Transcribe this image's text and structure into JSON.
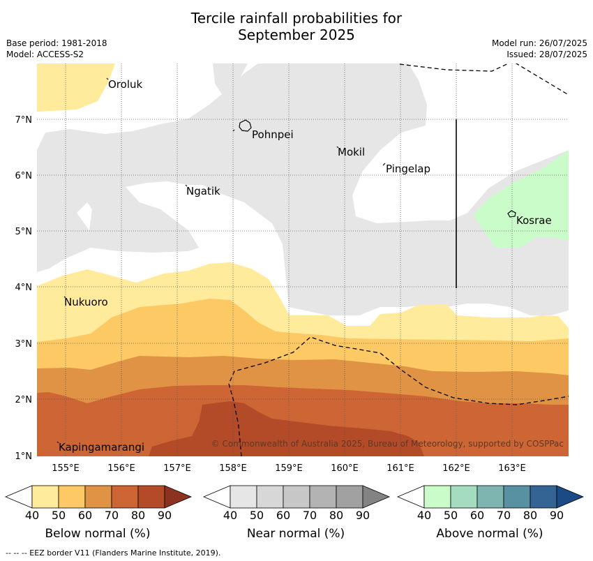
{
  "title": {
    "line1": "Tercile rainfall probabilities for",
    "line2": "September 2025"
  },
  "meta": {
    "base_period": "Base period: 1981-2018",
    "model": "Model: ACCESS-S2",
    "model_run": "Model run: 26/07/2025",
    "issued": "Issued: 28/07/2025"
  },
  "map": {
    "lon_ticks": [
      "155°E",
      "156°E",
      "157°E",
      "158°E",
      "159°E",
      "160°E",
      "161°E",
      "162°E",
      "163°E"
    ],
    "lat_ticks": [
      "1°N",
      "2°N",
      "3°N",
      "4°N",
      "5°N",
      "6°N",
      "7°N"
    ],
    "places": [
      {
        "name": "Oroluk"
      },
      {
        "name": "Pohnpei"
      },
      {
        "name": "Mokil"
      },
      {
        "name": "Pingelap"
      },
      {
        "name": "Ngatik"
      },
      {
        "name": "Kosrae"
      },
      {
        "name": "Nukuoro"
      },
      {
        "name": "Kapingamarangi"
      }
    ],
    "copyright": "© Commonwealth of Australia 2025, Bureau of Meteorology, supported by COSPPac"
  },
  "colorbars": [
    {
      "label": "Below normal (%)",
      "ticks": [
        "40",
        "50",
        "60",
        "70",
        "80",
        "90"
      ],
      "colors": [
        "#ffffff",
        "#ffeb9b",
        "#fdc964",
        "#e09344",
        "#cd6534",
        "#b34b28",
        "#8c3220"
      ]
    },
    {
      "label": "Near normal (%)",
      "ticks": [
        "40",
        "50",
        "60",
        "70",
        "80",
        "90"
      ],
      "colors": [
        "#ffffff",
        "#e6e6e6",
        "#d7d7d7",
        "#c7c7c7",
        "#b3b3b3",
        "#a1a1a1",
        "#838383"
      ]
    },
    {
      "label": "Above normal (%)",
      "ticks": [
        "40",
        "50",
        "60",
        "70",
        "80",
        "90"
      ],
      "colors": [
        "#ffffff",
        "#c9fcc9",
        "#a4dcc0",
        "#7fb5b0",
        "#5891a2",
        "#336494",
        "#1b4a87"
      ]
    }
  ],
  "footnote": "--  --  -- EEZ border V11 (Flanders Marine Institute, 2019)."
}
